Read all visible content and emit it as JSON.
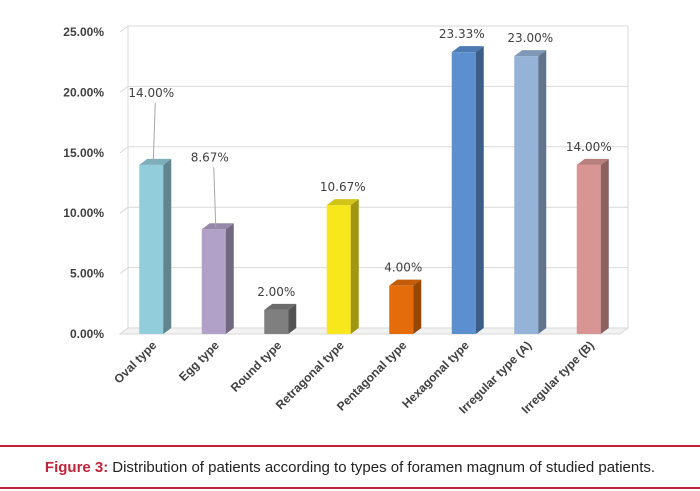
{
  "chart_data": {
    "type": "bar",
    "categories": [
      "Oval type",
      "Egg type",
      "Round type",
      "Retragonal type",
      "Pentagonal type",
      "Hexagonal type",
      "Irregular type (A)",
      "Irregular type (B)"
    ],
    "values": [
      14.0,
      8.67,
      2.0,
      10.67,
      4.0,
      23.33,
      23.0,
      14.0
    ],
    "data_labels": [
      "14.00%",
      "8.67%",
      "2.00%",
      "10.67%",
      "4.00%",
      "23.33%",
      "23.00%",
      "14.00%"
    ],
    "colors": [
      "#92cddc",
      "#b1a0c7",
      "#7f7f7f",
      "#f7e71c",
      "#e46c0a",
      "#5b8fd0",
      "#95b3d7",
      "#d99594"
    ],
    "yticks": [
      "0.00%",
      "5.00%",
      "10.00%",
      "15.00%",
      "20.00%",
      "25.00%"
    ],
    "ylim": [
      0,
      25
    ],
    "grid": true,
    "style": "3d-column",
    "xlabel": "",
    "ylabel": ""
  },
  "caption": {
    "lead": "Figure 3:",
    "text": "Distribution of patients according to types of foramen magnum of studied patients."
  }
}
